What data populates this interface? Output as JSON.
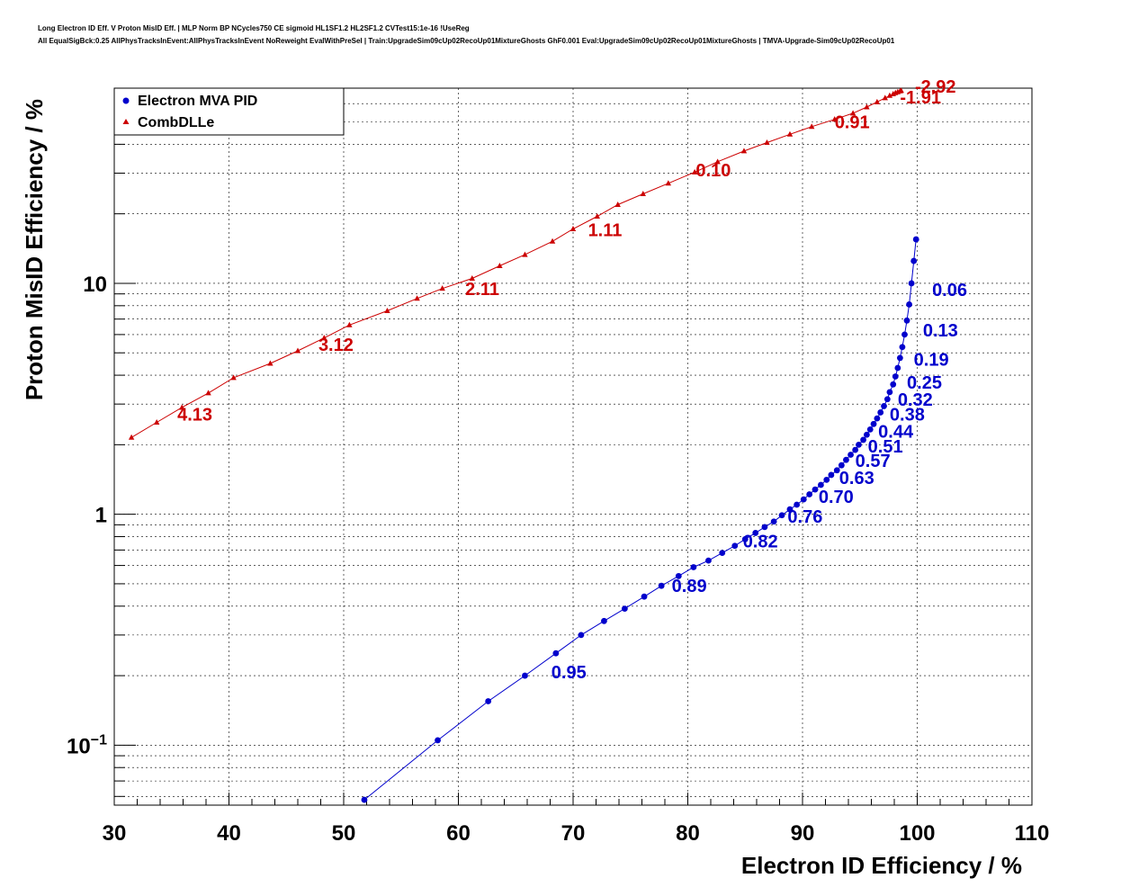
{
  "title_lines": [
    "Long Electron ID Eff. V Proton MisID Eff. | MLP Norm BP NCycles750 CE sigmoid HL1SF1.2 HL2SF1.2 CVTest15:1e-16 !UseReg",
    "All EqualSigBck:0.25 AllPhysTracksInEvent:AllPhysTracksInEvent NoReweight EvalWithPreSel | Train:UpgradeSim09cUp02RecoUp01MixtureGhosts GhF0.001 Eval:UpgradeSim09cUp02RecoUp01MixtureGhosts | TMVA-Upgrade-Sim09cUp02RecoUp01"
  ],
  "chart_data": {
    "type": "scatter",
    "xlabel": "Electron ID Efficiency / %",
    "ylabel": "Proton MisID Efficiency / %",
    "xlim": [
      30,
      110
    ],
    "ylim": [
      0.055,
      70
    ],
    "yscale": "log",
    "grid": true,
    "legend_position": "top-left",
    "x_ticks": [
      {
        "value": 30,
        "label": "30"
      },
      {
        "value": 40,
        "label": "40"
      },
      {
        "value": 50,
        "label": "50"
      },
      {
        "value": 60,
        "label": "60"
      },
      {
        "value": 70,
        "label": "70"
      },
      {
        "value": 80,
        "label": "80"
      },
      {
        "value": 90,
        "label": "90"
      },
      {
        "value": 100,
        "label": "100"
      },
      {
        "value": 110,
        "label": "110"
      }
    ],
    "y_ticks": [
      {
        "value": 0.1,
        "base": "10",
        "exp": "−1"
      },
      {
        "value": 1,
        "base": "1",
        "exp": ""
      },
      {
        "value": 10,
        "base": "10",
        "exp": ""
      }
    ],
    "series": [
      {
        "name": "Electron MVA PID",
        "color": "#0000cc",
        "marker": "circle",
        "x": [
          51.8,
          58.2,
          62.6,
          65.8,
          68.5,
          70.7,
          72.7,
          74.5,
          76.2,
          77.7,
          79.2,
          80.5,
          81.8,
          83.0,
          84.1,
          85.0,
          85.9,
          86.7,
          87.5,
          88.2,
          88.9,
          89.5,
          90.1,
          90.6,
          91.1,
          91.6,
          92.1,
          92.5,
          93.0,
          93.4,
          93.8,
          94.2,
          94.6,
          94.9,
          95.3,
          95.6,
          95.9,
          96.2,
          96.5,
          96.8,
          97.1,
          97.4,
          97.6,
          97.9,
          98.1,
          98.3,
          98.5,
          98.7,
          98.9,
          99.1,
          99.3,
          99.5,
          99.7,
          99.9
        ],
        "y": [
          0.058,
          0.105,
          0.155,
          0.2,
          0.25,
          0.3,
          0.345,
          0.39,
          0.44,
          0.49,
          0.54,
          0.59,
          0.63,
          0.68,
          0.73,
          0.78,
          0.83,
          0.88,
          0.93,
          0.99,
          1.05,
          1.1,
          1.16,
          1.22,
          1.28,
          1.34,
          1.41,
          1.48,
          1.55,
          1.63,
          1.72,
          1.81,
          1.9,
          2.0,
          2.1,
          2.21,
          2.33,
          2.46,
          2.6,
          2.76,
          2.94,
          3.15,
          3.38,
          3.65,
          3.95,
          4.3,
          4.75,
          5.3,
          6.0,
          6.9,
          8.1,
          10.0,
          12.5,
          15.5
        ],
        "cut_labels": [
          {
            "text": "0.06",
            "x": 101.3,
            "y": 8.8
          },
          {
            "text": "0.13",
            "x": 100.5,
            "y": 5.9
          },
          {
            "text": "0.19",
            "x": 99.7,
            "y": 4.4
          },
          {
            "text": "0.25",
            "x": 99.1,
            "y": 3.5
          },
          {
            "text": "0.32",
            "x": 98.3,
            "y": 2.95
          },
          {
            "text": "0.38",
            "x": 97.6,
            "y": 2.55
          },
          {
            "text": "0.44",
            "x": 96.6,
            "y": 2.15
          },
          {
            "text": "0.51",
            "x": 95.7,
            "y": 1.85
          },
          {
            "text": "0.57",
            "x": 94.6,
            "y": 1.6
          },
          {
            "text": "0.63",
            "x": 93.2,
            "y": 1.35
          },
          {
            "text": "0.70",
            "x": 91.4,
            "y": 1.12
          },
          {
            "text": "0.76",
            "x": 88.7,
            "y": 0.92
          },
          {
            "text": "0.82",
            "x": 84.8,
            "y": 0.72
          },
          {
            "text": "0.89",
            "x": 78.6,
            "y": 0.46
          },
          {
            "text": "0.95",
            "x": 68.1,
            "y": 0.195
          }
        ]
      },
      {
        "name": "CombDLLe",
        "color": "#cc0000",
        "marker": "triangle",
        "x": [
          31.5,
          33.7,
          35.9,
          38.2,
          40.4,
          43.6,
          46.0,
          48.3,
          50.5,
          53.8,
          56.4,
          58.6,
          61.2,
          63.6,
          65.8,
          68.2,
          70.0,
          72.1,
          73.9,
          76.1,
          78.3,
          80.6,
          82.6,
          84.9,
          86.9,
          88.9,
          90.8,
          92.8,
          94.4,
          95.6,
          96.5,
          97.2,
          97.6,
          97.9,
          98.1,
          98.3,
          98.5,
          98.6
        ],
        "y": [
          2.15,
          2.5,
          2.9,
          3.35,
          3.9,
          4.5,
          5.1,
          5.8,
          6.6,
          7.6,
          8.6,
          9.5,
          10.5,
          11.9,
          13.3,
          15.2,
          17.2,
          19.5,
          21.9,
          24.4,
          27.1,
          30.3,
          33.6,
          37.4,
          40.7,
          44.2,
          47.7,
          51.3,
          54.5,
          58.0,
          61.0,
          63.5,
          65.0,
          66.0,
          66.8,
          67.4,
          68.0,
          68.3
        ],
        "cut_labels": [
          {
            "text": "4.13",
            "x": 35.5,
            "y": 2.55
          },
          {
            "text": "3.12",
            "x": 47.8,
            "y": 5.1
          },
          {
            "text": "2.11",
            "x": 60.6,
            "y": 8.9
          },
          {
            "text": "1.11",
            "x": 71.3,
            "y": 16.0
          },
          {
            "text": "0.10",
            "x": 80.7,
            "y": 29.0
          },
          {
            "text": "0.91",
            "x": 92.8,
            "y": 47.0
          },
          {
            "text": "-1.91",
            "x": 98.5,
            "y": 60.0
          },
          {
            "text": "-2.92",
            "x": 99.8,
            "y": 67.0
          }
        ]
      }
    ]
  }
}
